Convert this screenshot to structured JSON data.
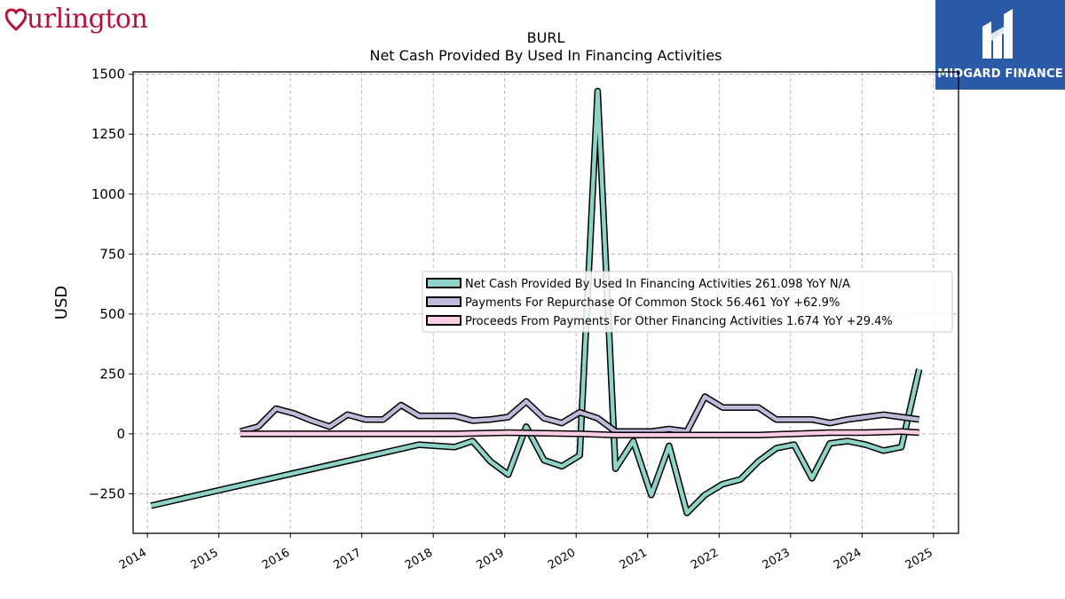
{
  "brand": {
    "name": "urlington",
    "color": "#b5123e"
  },
  "partner": {
    "name": "MIDGARD FINANCE",
    "bg": "#2b5aa6"
  },
  "chart_data": {
    "type": "line",
    "title": "BURL",
    "subtitle": "Net Cash Provided By Used In Financing Activities",
    "xlabel": "",
    "ylabel": "USD",
    "xlim": [
      2013.8,
      2025.35
    ],
    "ylim": [
      -415,
      1510
    ],
    "x_ticks": [
      "2014",
      "2015",
      "2016",
      "2017",
      "2018",
      "2019",
      "2020",
      "2021",
      "2022",
      "2023",
      "2024",
      "2025"
    ],
    "y_ticks": [
      -250,
      0,
      250,
      500,
      750,
      1000,
      1250,
      1500
    ],
    "y_tick_labels": [
      "−250",
      "0",
      "250",
      "500",
      "750",
      "1000",
      "1250",
      "1500"
    ],
    "grid": true,
    "legend_position": "center-right",
    "series": [
      {
        "name": "Net Cash Provided By Used In Financing Activities",
        "legend_label": "Net Cash Provided By Used In Financing Activities  261.098 YoY N/A",
        "color": "#8dd3c7",
        "points": [
          [
            2014.05,
            -300
          ],
          [
            2017.8,
            -45
          ],
          [
            2018.3,
            -55
          ],
          [
            2018.55,
            -30
          ],
          [
            2018.8,
            -115
          ],
          [
            2019.05,
            -170
          ],
          [
            2019.3,
            30
          ],
          [
            2019.55,
            -110
          ],
          [
            2019.8,
            -135
          ],
          [
            2020.05,
            -90
          ],
          [
            2020.3,
            1430
          ],
          [
            2020.55,
            -145
          ],
          [
            2020.8,
            -30
          ],
          [
            2021.05,
            -255
          ],
          [
            2021.3,
            -50
          ],
          [
            2021.55,
            -330
          ],
          [
            2021.8,
            -255
          ],
          [
            2022.05,
            -210
          ],
          [
            2022.3,
            -190
          ],
          [
            2022.55,
            -115
          ],
          [
            2022.8,
            -60
          ],
          [
            2023.05,
            -45
          ],
          [
            2023.3,
            -185
          ],
          [
            2023.55,
            -40
          ],
          [
            2023.8,
            -30
          ],
          [
            2024.05,
            -45
          ],
          [
            2024.3,
            -70
          ],
          [
            2024.55,
            -55
          ],
          [
            2024.8,
            270
          ]
        ]
      },
      {
        "name": "Payments For Repurchase Of Common Stock",
        "legend_label": "Payments For Repurchase Of Common Stock  56.461 YoY +62.9%",
        "color": "#bebada",
        "points": [
          [
            2015.3,
            10
          ],
          [
            2015.55,
            30
          ],
          [
            2015.8,
            105
          ],
          [
            2016.05,
            85
          ],
          [
            2016.3,
            55
          ],
          [
            2016.55,
            30
          ],
          [
            2016.8,
            80
          ],
          [
            2017.05,
            60
          ],
          [
            2017.3,
            60
          ],
          [
            2017.55,
            120
          ],
          [
            2017.8,
            75
          ],
          [
            2018.05,
            75
          ],
          [
            2018.3,
            75
          ],
          [
            2018.55,
            55
          ],
          [
            2018.8,
            60
          ],
          [
            2019.05,
            70
          ],
          [
            2019.3,
            135
          ],
          [
            2019.55,
            65
          ],
          [
            2019.8,
            45
          ],
          [
            2020.05,
            90
          ],
          [
            2020.3,
            65
          ],
          [
            2020.55,
            10
          ],
          [
            2020.8,
            10
          ],
          [
            2021.05,
            10
          ],
          [
            2021.3,
            20
          ],
          [
            2021.55,
            10
          ],
          [
            2021.8,
            155
          ],
          [
            2022.05,
            110
          ],
          [
            2022.3,
            110
          ],
          [
            2022.55,
            110
          ],
          [
            2022.8,
            60
          ],
          [
            2023.05,
            60
          ],
          [
            2023.3,
            60
          ],
          [
            2023.55,
            45
          ],
          [
            2023.8,
            60
          ],
          [
            2024.05,
            70
          ],
          [
            2024.3,
            80
          ],
          [
            2024.55,
            70
          ],
          [
            2024.8,
            60
          ]
        ]
      },
      {
        "name": "Proceeds From Payments For Other Financing Activities",
        "legend_label": "Proceeds From Payments For Other Financing Activities  1.674 YoY +29.4%",
        "color": "#fccde5",
        "points": [
          [
            2015.3,
            0
          ],
          [
            2016.3,
            0
          ],
          [
            2017.3,
            0
          ],
          [
            2018.3,
            0
          ],
          [
            2019.05,
            5
          ],
          [
            2020.05,
            0
          ],
          [
            2020.55,
            -5
          ],
          [
            2021.05,
            -5
          ],
          [
            2021.55,
            -5
          ],
          [
            2022.05,
            -5
          ],
          [
            2022.55,
            -5
          ],
          [
            2023.05,
            0
          ],
          [
            2023.55,
            5
          ],
          [
            2024.05,
            5
          ],
          [
            2024.55,
            10
          ],
          [
            2024.8,
            5
          ]
        ]
      }
    ]
  }
}
